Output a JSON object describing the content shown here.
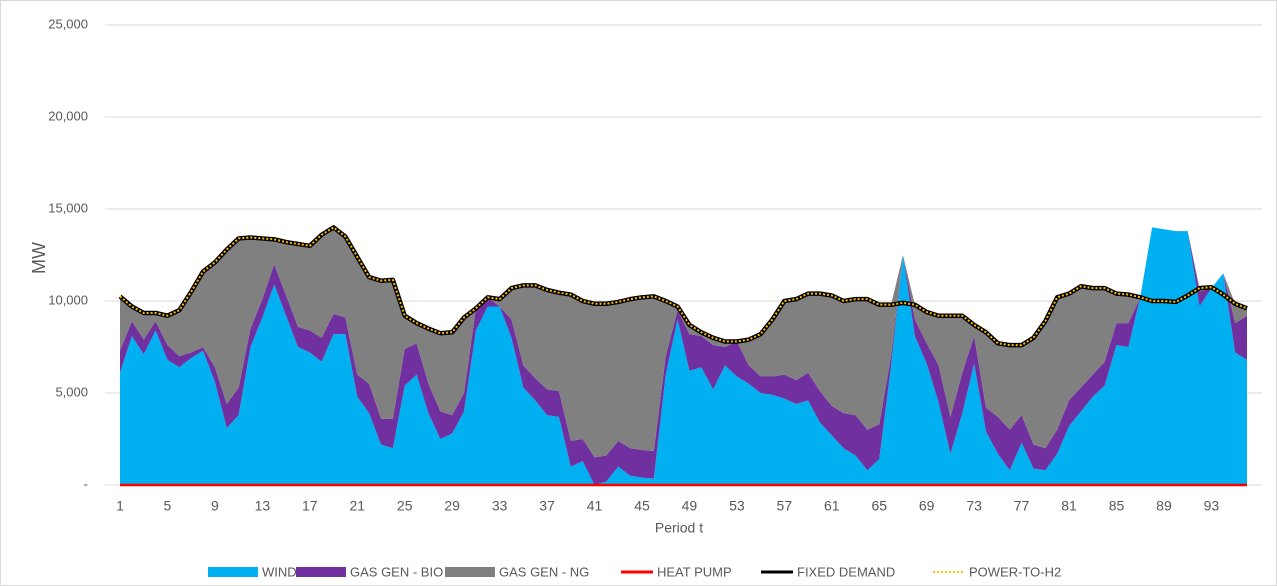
{
  "chart_data": {
    "type": "stacked-area",
    "y_label": "MW",
    "x_label": "Period t",
    "x": [
      1,
      2,
      3,
      4,
      5,
      6,
      7,
      8,
      9,
      10,
      11,
      12,
      13,
      14,
      15,
      16,
      17,
      18,
      19,
      20,
      21,
      22,
      23,
      24,
      25,
      26,
      27,
      28,
      29,
      30,
      31,
      32,
      33,
      34,
      35,
      36,
      37,
      38,
      39,
      40,
      41,
      42,
      43,
      44,
      45,
      46,
      47,
      48,
      49,
      50,
      51,
      52,
      53,
      54,
      55,
      56,
      57,
      58,
      59,
      60,
      61,
      62,
      63,
      64,
      65,
      66,
      67,
      68,
      69,
      70,
      71,
      72,
      73,
      74,
      75,
      76,
      77,
      78,
      79,
      80,
      81,
      82,
      83,
      84,
      85,
      86,
      87,
      88,
      89,
      90,
      91,
      92,
      93,
      94,
      95,
      96
    ],
    "xlim": [
      1,
      96
    ],
    "xticks": [
      1,
      5,
      9,
      13,
      17,
      21,
      25,
      29,
      33,
      37,
      41,
      45,
      49,
      53,
      57,
      61,
      65,
      69,
      73,
      77,
      81,
      85,
      89,
      93
    ],
    "ylim": [
      0,
      25000
    ],
    "yticks": [
      {
        "value": 0,
        "label": "-"
      },
      {
        "value": 5000,
        "label": "5,000"
      },
      {
        "value": 10000,
        "label": "10,000"
      },
      {
        "value": 15000,
        "label": "15,000"
      },
      {
        "value": 20000,
        "label": "20,000"
      },
      {
        "value": 25000,
        "label": "25,000"
      }
    ],
    "grid": true,
    "legend": "bottom",
    "series": [
      {
        "name": "WIND",
        "kind": "area",
        "color": "#00b0f0",
        "values": [
          6100,
          8100,
          7100,
          8400,
          6800,
          6400,
          6900,
          7300,
          5600,
          3100,
          3800,
          7500,
          9100,
          10900,
          9200,
          7500,
          7200,
          6700,
          8200,
          8200,
          4800,
          3900,
          2200,
          2000,
          5400,
          6000,
          3900,
          2500,
          2800,
          4000,
          8400,
          9700,
          9700,
          8000,
          5300,
          4600,
          3800,
          3700,
          1000,
          1300,
          0,
          200,
          1000,
          500,
          400,
          350,
          6000,
          9000,
          6200,
          6400,
          5200,
          6500,
          5900,
          5500,
          5000,
          4900,
          4700,
          4400,
          4600,
          3400,
          2700,
          2000,
          1600,
          800,
          1400,
          6500,
          12500,
          8100,
          6600,
          4500,
          1700,
          3900,
          6600,
          2900,
          1700,
          800,
          2300,
          900,
          800,
          1700,
          3200,
          4000,
          4800,
          5400,
          7600,
          7500,
          10200,
          14000,
          13900,
          13800,
          13800,
          9700,
          10700,
          11500,
          7200,
          6800
        ]
      },
      {
        "name": "GAS GEN - BIO",
        "kind": "area",
        "color": "#7030a0",
        "values": [
          1200,
          800,
          800,
          500,
          800,
          600,
          300,
          200,
          800,
          1300,
          1500,
          1000,
          1000,
          1100,
          1100,
          1100,
          1200,
          1300,
          1100,
          900,
          1200,
          1600,
          1400,
          1600,
          2000,
          1700,
          1600,
          1500,
          1000,
          1000,
          1200,
          500,
          0,
          1000,
          1200,
          1200,
          1400,
          1400,
          1400,
          1200,
          1500,
          1400,
          1400,
          1500,
          1500,
          1500,
          1000,
          500,
          2000,
          1700,
          2400,
          1000,
          1900,
          1000,
          900,
          1000,
          1300,
          1300,
          1500,
          1700,
          1600,
          1900,
          2200,
          2200,
          1900,
          500,
          0,
          900,
          1100,
          2000,
          2000,
          2200,
          1500,
          1300,
          2000,
          2200,
          1500,
          1300,
          1200,
          1300,
          1400,
          1300,
          1200,
          1300,
          1200,
          1300,
          0,
          0,
          0,
          0,
          0,
          800,
          0,
          0,
          1600,
          2400
        ]
      },
      {
        "name": "GAS GEN - NG",
        "kind": "area",
        "color": "#808080",
        "values": [
          2950,
          800,
          1450,
          450,
          1600,
          2500,
          3300,
          4100,
          5700,
          8400,
          8100,
          4950,
          3300,
          1350,
          2900,
          4500,
          4600,
          5600,
          4700,
          4400,
          6400,
          5800,
          7500,
          7550,
          1800,
          1100,
          3000,
          4250,
          4500,
          4100,
          0,
          0,
          400,
          1700,
          4350,
          5050,
          5400,
          5350,
          7950,
          7500,
          8350,
          8250,
          7550,
          8100,
          8300,
          8400,
          3000,
          200,
          500,
          200,
          400,
          300,
          0,
          1400,
          2300,
          3100,
          4000,
          4400,
          4300,
          5300,
          6000,
          6100,
          6300,
          7100,
          6500,
          2800,
          0,
          800,
          1700,
          2700,
          5500,
          3100,
          600,
          4100,
          4000,
          4600,
          3800,
          5800,
          6900,
          7200,
          5800,
          5500,
          4700,
          4000,
          1600,
          1550,
          0,
          0,
          0,
          0,
          0,
          200,
          0,
          0,
          1050,
          400
        ]
      },
      {
        "name": "HEAT PUMP",
        "kind": "line",
        "color": "#ff0000",
        "values": [
          0,
          0,
          0,
          0,
          0,
          0,
          0,
          0,
          0,
          0,
          0,
          0,
          0,
          0,
          0,
          0,
          0,
          0,
          0,
          0,
          0,
          0,
          0,
          0,
          0,
          0,
          0,
          0,
          0,
          0,
          0,
          0,
          0,
          0,
          0,
          0,
          0,
          0,
          0,
          0,
          0,
          0,
          0,
          0,
          0,
          0,
          0,
          0,
          0,
          0,
          0,
          0,
          0,
          0,
          0,
          0,
          0,
          0,
          0,
          0,
          0,
          0,
          0,
          0,
          0,
          0,
          0,
          0,
          0,
          0,
          0,
          0,
          0,
          0,
          0,
          0,
          0,
          0,
          0,
          0,
          0,
          0,
          0,
          0,
          0,
          0,
          0,
          0,
          0,
          0,
          0,
          0,
          0,
          0,
          0,
          0
        ]
      },
      {
        "name": "FIXED DEMAND",
        "kind": "line",
        "color": "#000000",
        "values": [
          10250,
          9700,
          9350,
          9350,
          9200,
          9500,
          10500,
          11600,
          12100,
          12800,
          13400,
          13450,
          13400,
          13350,
          13200,
          13100,
          13000,
          13600,
          14000,
          13500,
          12400,
          11300,
          11100,
          11150,
          9200,
          8800,
          8500,
          8250,
          8300,
          9100,
          9600,
          10200,
          10100,
          10700,
          10850,
          10850,
          10600,
          10450,
          10350,
          10000,
          9850,
          9850,
          9950,
          10100,
          10200,
          10250,
          10000,
          9700,
          8700,
          8300,
          8000,
          7800,
          7800,
          7900,
          8200,
          9000,
          10000,
          10100,
          10400,
          10400,
          10300,
          10000,
          10100,
          10100,
          9800,
          9800,
          9900,
          9800,
          9400,
          9200,
          9200,
          9200,
          8700,
          8300,
          7700,
          7600,
          7600,
          8000,
          8900,
          10200,
          10400,
          10800,
          10700,
          10700,
          10400,
          10350,
          10200,
          10000,
          10000,
          9950,
          10300,
          10700,
          10750,
          10350,
          9850,
          9600
        ]
      },
      {
        "name": "POWER-TO-H2",
        "kind": "dotted-line",
        "color": "#ffc000",
        "values": [
          10250,
          9700,
          9350,
          9350,
          9200,
          9500,
          10500,
          11600,
          12100,
          12800,
          13400,
          13450,
          13400,
          13350,
          13200,
          13100,
          13000,
          13600,
          14000,
          13500,
          12400,
          11300,
          11100,
          11150,
          9200,
          8800,
          8500,
          8250,
          8300,
          9100,
          9600,
          10200,
          10100,
          10700,
          10850,
          10850,
          10600,
          10450,
          10350,
          10000,
          9850,
          9850,
          9950,
          10100,
          10200,
          10250,
          10000,
          9700,
          8700,
          8300,
          8000,
          7800,
          7800,
          7900,
          8200,
          9000,
          10000,
          10100,
          10400,
          10400,
          10300,
          10000,
          10100,
          10100,
          9800,
          9800,
          9900,
          9800,
          9400,
          9200,
          9200,
          9200,
          8700,
          8300,
          7700,
          7600,
          7600,
          8000,
          8900,
          10200,
          10400,
          10800,
          10700,
          10700,
          10400,
          10350,
          10200,
          10000,
          10000,
          9950,
          10300,
          10700,
          10750,
          10350,
          9850,
          9600
        ]
      }
    ]
  }
}
